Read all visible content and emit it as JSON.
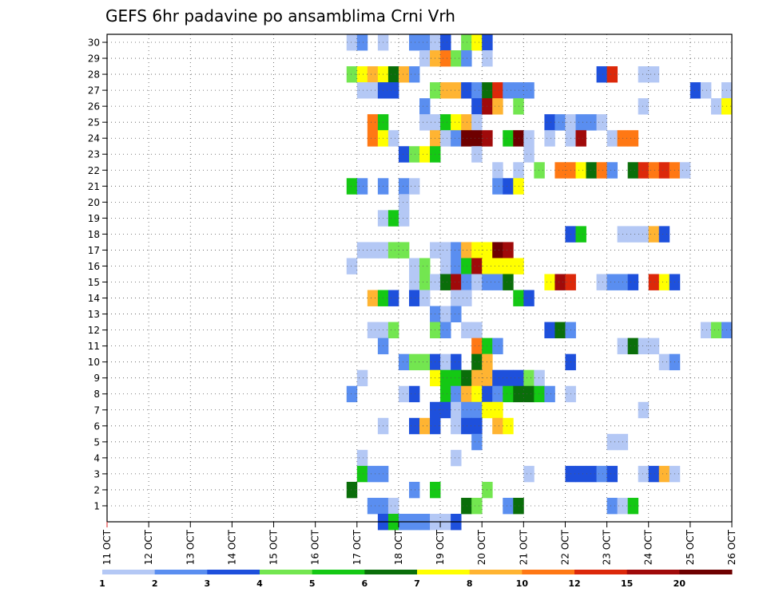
{
  "chart_data": {
    "type": "heatmap",
    "title": "GEFS 6hr padavine po ansamblima Crni Vrh",
    "xlabel": "",
    "ylabel": "",
    "x_tick_labels": [
      "11 OCT",
      "12 OCT",
      "13 OCT",
      "14 OCT",
      "15 OCT",
      "16 OCT",
      "17 OCT",
      "18 OCT",
      "19 OCT",
      "20 OCT",
      "21 OCT",
      "22 OCT",
      "23 OCT",
      "24 OCT",
      "25 OCT",
      "26 OCT"
    ],
    "y_tick_labels": [
      "1",
      "2",
      "3",
      "4",
      "5",
      "6",
      "7",
      "8",
      "9",
      "10",
      "11",
      "12",
      "13",
      "14",
      "15",
      "16",
      "17",
      "18",
      "19",
      "20",
      "21",
      "22",
      "23",
      "24",
      "25",
      "26",
      "27",
      "28",
      "29",
      "30"
    ],
    "x_range_days": [
      0,
      15
    ],
    "y_range": [
      0,
      30
    ],
    "steps_per_day": 4,
    "grid": "dotted",
    "legend_placement": "bottom",
    "color_levels": [
      1,
      2,
      3,
      4,
      5,
      6,
      7,
      8,
      10,
      12,
      15,
      20
    ],
    "level_labels": [
      "1",
      "2",
      "3",
      "4",
      "5",
      "6",
      "7",
      "8",
      "10",
      "12",
      "15",
      "20"
    ],
    "colors": [
      "#b4c8f5",
      "#5a8ef0",
      "#1e50dc",
      "#73e650",
      "#14c814",
      "#0a6e0a",
      "#ffff00",
      "#ffb432",
      "#ff7814",
      "#dc280a",
      "#a00a0a",
      "#6e0000"
    ],
    "cells": [
      [
        30,
        23,
        0
      ],
      [
        30,
        24,
        1
      ],
      [
        30,
        26,
        0
      ],
      [
        30,
        29,
        1
      ],
      [
        30,
        30,
        1
      ],
      [
        30,
        31,
        0
      ],
      [
        30,
        32,
        2
      ],
      [
        30,
        34,
        3
      ],
      [
        30,
        35,
        6
      ],
      [
        30,
        36,
        2
      ],
      [
        29,
        30,
        0
      ],
      [
        29,
        31,
        7
      ],
      [
        29,
        32,
        8
      ],
      [
        29,
        33,
        3
      ],
      [
        29,
        34,
        1
      ],
      [
        29,
        36,
        0
      ],
      [
        28,
        23,
        3
      ],
      [
        28,
        24,
        6
      ],
      [
        28,
        25,
        7
      ],
      [
        28,
        26,
        6
      ],
      [
        28,
        27,
        5
      ],
      [
        28,
        28,
        7
      ],
      [
        28,
        29,
        1
      ],
      [
        28,
        47,
        2
      ],
      [
        28,
        48,
        9
      ],
      [
        28,
        51,
        0
      ],
      [
        28,
        52,
        0
      ],
      [
        27,
        24,
        0
      ],
      [
        27,
        25,
        0
      ],
      [
        27,
        26,
        2
      ],
      [
        27,
        27,
        2
      ],
      [
        27,
        31,
        3
      ],
      [
        27,
        32,
        7
      ],
      [
        27,
        33,
        7
      ],
      [
        27,
        34,
        2
      ],
      [
        27,
        35,
        1
      ],
      [
        27,
        36,
        5
      ],
      [
        27,
        37,
        9
      ],
      [
        27,
        38,
        1
      ],
      [
        27,
        39,
        1
      ],
      [
        27,
        40,
        1
      ],
      [
        27,
        56,
        2
      ],
      [
        27,
        57,
        0
      ],
      [
        27,
        59,
        0
      ],
      [
        26,
        30,
        1
      ],
      [
        26,
        35,
        2
      ],
      [
        26,
        36,
        10
      ],
      [
        26,
        37,
        7
      ],
      [
        26,
        39,
        3
      ],
      [
        26,
        51,
        0
      ],
      [
        26,
        58,
        0
      ],
      [
        26,
        59,
        6
      ],
      [
        25,
        25,
        8
      ],
      [
        25,
        26,
        4
      ],
      [
        25,
        30,
        0
      ],
      [
        25,
        31,
        0
      ],
      [
        25,
        32,
        4
      ],
      [
        25,
        33,
        6
      ],
      [
        25,
        34,
        7
      ],
      [
        25,
        35,
        0
      ],
      [
        25,
        42,
        2
      ],
      [
        25,
        43,
        1
      ],
      [
        25,
        44,
        0
      ],
      [
        25,
        45,
        1
      ],
      [
        25,
        46,
        1
      ],
      [
        25,
        47,
        0
      ],
      [
        24,
        25,
        8
      ],
      [
        24,
        26,
        6
      ],
      [
        24,
        27,
        0
      ],
      [
        24,
        31,
        7
      ],
      [
        24,
        32,
        0
      ],
      [
        24,
        33,
        1
      ],
      [
        24,
        34,
        11
      ],
      [
        24,
        35,
        11
      ],
      [
        24,
        36,
        10
      ],
      [
        24,
        38,
        4
      ],
      [
        24,
        39,
        11
      ],
      [
        24,
        40,
        0
      ],
      [
        24,
        42,
        0
      ],
      [
        24,
        44,
        0
      ],
      [
        24,
        45,
        10
      ],
      [
        24,
        48,
        0
      ],
      [
        24,
        49,
        8
      ],
      [
        24,
        50,
        8
      ],
      [
        23,
        28,
        2
      ],
      [
        23,
        29,
        3
      ],
      [
        23,
        30,
        6
      ],
      [
        23,
        31,
        4
      ],
      [
        23,
        35,
        0
      ],
      [
        23,
        40,
        0
      ],
      [
        22,
        37,
        0
      ],
      [
        22,
        39,
        0
      ],
      [
        22,
        41,
        3
      ],
      [
        22,
        43,
        8
      ],
      [
        22,
        44,
        8
      ],
      [
        22,
        45,
        6
      ],
      [
        22,
        46,
        5
      ],
      [
        22,
        47,
        8
      ],
      [
        22,
        48,
        1
      ],
      [
        22,
        50,
        5
      ],
      [
        22,
        51,
        9
      ],
      [
        22,
        52,
        8
      ],
      [
        22,
        53,
        9
      ],
      [
        22,
        54,
        8
      ],
      [
        22,
        55,
        0
      ],
      [
        21,
        23,
        4
      ],
      [
        21,
        24,
        1
      ],
      [
        21,
        26,
        1
      ],
      [
        21,
        28,
        1
      ],
      [
        21,
        29,
        0
      ],
      [
        21,
        37,
        1
      ],
      [
        21,
        38,
        2
      ],
      [
        21,
        39,
        6
      ],
      [
        20,
        28,
        0
      ],
      [
        19,
        26,
        0
      ],
      [
        19,
        27,
        4
      ],
      [
        19,
        28,
        0
      ],
      [
        18,
        44,
        2
      ],
      [
        18,
        45,
        4
      ],
      [
        18,
        49,
        0
      ],
      [
        18,
        50,
        0
      ],
      [
        18,
        51,
        0
      ],
      [
        18,
        52,
        7
      ],
      [
        18,
        53,
        2
      ],
      [
        17,
        24,
        0
      ],
      [
        17,
        25,
        0
      ],
      [
        17,
        26,
        0
      ],
      [
        17,
        27,
        3
      ],
      [
        17,
        28,
        3
      ],
      [
        17,
        31,
        0
      ],
      [
        17,
        32,
        0
      ],
      [
        17,
        33,
        1
      ],
      [
        17,
        34,
        7
      ],
      [
        17,
        35,
        6
      ],
      [
        17,
        36,
        6
      ],
      [
        17,
        37,
        11
      ],
      [
        17,
        38,
        10
      ],
      [
        16,
        23,
        0
      ],
      [
        16,
        29,
        0
      ],
      [
        16,
        30,
        3
      ],
      [
        16,
        32,
        0
      ],
      [
        16,
        33,
        1
      ],
      [
        16,
        34,
        4
      ],
      [
        16,
        35,
        10
      ],
      [
        16,
        36,
        6
      ],
      [
        16,
        37,
        6
      ],
      [
        16,
        38,
        6
      ],
      [
        16,
        39,
        6
      ],
      [
        15,
        29,
        0
      ],
      [
        15,
        30,
        3
      ],
      [
        15,
        31,
        0
      ],
      [
        15,
        32,
        5
      ],
      [
        15,
        33,
        10
      ],
      [
        15,
        34,
        1
      ],
      [
        15,
        35,
        0
      ],
      [
        15,
        36,
        1
      ],
      [
        15,
        37,
        1
      ],
      [
        15,
        38,
        5
      ],
      [
        15,
        42,
        6
      ],
      [
        15,
        43,
        10
      ],
      [
        15,
        44,
        9
      ],
      [
        15,
        47,
        0
      ],
      [
        15,
        48,
        1
      ],
      [
        15,
        49,
        1
      ],
      [
        15,
        50,
        2
      ],
      [
        15,
        52,
        9
      ],
      [
        15,
        53,
        6
      ],
      [
        15,
        54,
        2
      ],
      [
        14,
        25,
        7
      ],
      [
        14,
        26,
        4
      ],
      [
        14,
        27,
        2
      ],
      [
        14,
        29,
        2
      ],
      [
        14,
        30,
        0
      ],
      [
        14,
        33,
        0
      ],
      [
        14,
        34,
        0
      ],
      [
        14,
        39,
        4
      ],
      [
        14,
        40,
        2
      ],
      [
        13,
        31,
        1
      ],
      [
        13,
        32,
        0
      ],
      [
        13,
        33,
        1
      ],
      [
        12,
        25,
        0
      ],
      [
        12,
        26,
        0
      ],
      [
        12,
        27,
        3
      ],
      [
        12,
        31,
        3
      ],
      [
        12,
        32,
        1
      ],
      [
        12,
        34,
        0
      ],
      [
        12,
        35,
        0
      ],
      [
        12,
        42,
        2
      ],
      [
        12,
        43,
        5
      ],
      [
        12,
        44,
        1
      ],
      [
        12,
        57,
        0
      ],
      [
        12,
        58,
        3
      ],
      [
        12,
        59,
        1
      ],
      [
        11,
        26,
        1
      ],
      [
        11,
        35,
        8
      ],
      [
        11,
        36,
        4
      ],
      [
        11,
        37,
        1
      ],
      [
        11,
        49,
        0
      ],
      [
        11,
        50,
        5
      ],
      [
        11,
        51,
        0
      ],
      [
        11,
        52,
        0
      ],
      [
        10,
        28,
        1
      ],
      [
        10,
        29,
        3
      ],
      [
        10,
        30,
        3
      ],
      [
        10,
        31,
        2
      ],
      [
        10,
        32,
        0
      ],
      [
        10,
        33,
        2
      ],
      [
        10,
        35,
        5
      ],
      [
        10,
        36,
        7
      ],
      [
        10,
        44,
        2
      ],
      [
        10,
        53,
        0
      ],
      [
        10,
        54,
        1
      ],
      [
        9,
        24,
        0
      ],
      [
        9,
        31,
        6
      ],
      [
        9,
        32,
        4
      ],
      [
        9,
        33,
        4
      ],
      [
        9,
        34,
        5
      ],
      [
        9,
        35,
        7
      ],
      [
        9,
        36,
        7
      ],
      [
        9,
        37,
        2
      ],
      [
        9,
        38,
        2
      ],
      [
        9,
        39,
        2
      ],
      [
        9,
        40,
        3
      ],
      [
        9,
        41,
        0
      ],
      [
        8,
        23,
        1
      ],
      [
        8,
        28,
        0
      ],
      [
        8,
        29,
        2
      ],
      [
        8,
        32,
        4
      ],
      [
        8,
        33,
        1
      ],
      [
        8,
        34,
        7
      ],
      [
        8,
        35,
        6
      ],
      [
        8,
        36,
        2
      ],
      [
        8,
        37,
        1
      ],
      [
        8,
        38,
        4
      ],
      [
        8,
        39,
        5
      ],
      [
        8,
        40,
        5
      ],
      [
        8,
        41,
        4
      ],
      [
        8,
        42,
        1
      ],
      [
        8,
        44,
        0
      ],
      [
        7,
        31,
        2
      ],
      [
        7,
        32,
        2
      ],
      [
        7,
        33,
        0
      ],
      [
        7,
        34,
        1
      ],
      [
        7,
        35,
        1
      ],
      [
        7,
        36,
        6
      ],
      [
        7,
        37,
        6
      ],
      [
        7,
        51,
        0
      ],
      [
        6,
        26,
        0
      ],
      [
        6,
        29,
        2
      ],
      [
        6,
        30,
        7
      ],
      [
        6,
        31,
        2
      ],
      [
        6,
        33,
        0
      ],
      [
        6,
        34,
        2
      ],
      [
        6,
        35,
        2
      ],
      [
        6,
        37,
        7
      ],
      [
        6,
        38,
        6
      ],
      [
        5,
        35,
        1
      ],
      [
        5,
        48,
        0
      ],
      [
        5,
        49,
        0
      ],
      [
        4,
        24,
        0
      ],
      [
        4,
        33,
        0
      ],
      [
        3,
        24,
        4
      ],
      [
        3,
        25,
        1
      ],
      [
        3,
        26,
        1
      ],
      [
        3,
        40,
        0
      ],
      [
        3,
        44,
        2
      ],
      [
        3,
        45,
        2
      ],
      [
        3,
        46,
        2
      ],
      [
        3,
        47,
        1
      ],
      [
        3,
        48,
        2
      ],
      [
        3,
        51,
        0
      ],
      [
        3,
        52,
        2
      ],
      [
        3,
        53,
        7
      ],
      [
        3,
        54,
        0
      ],
      [
        2,
        23,
        5
      ],
      [
        2,
        29,
        1
      ],
      [
        2,
        31,
        4
      ],
      [
        2,
        36,
        3
      ],
      [
        1,
        25,
        1
      ],
      [
        1,
        26,
        1
      ],
      [
        1,
        27,
        0
      ],
      [
        1,
        34,
        5
      ],
      [
        1,
        35,
        3
      ],
      [
        1,
        38,
        1
      ],
      [
        1,
        39,
        5
      ],
      [
        1,
        48,
        1
      ],
      [
        1,
        49,
        0
      ],
      [
        1,
        50,
        4
      ],
      [
        0,
        26,
        2
      ],
      [
        0,
        27,
        4
      ],
      [
        0,
        28,
        1
      ],
      [
        0,
        29,
        1
      ],
      [
        0,
        30,
        1
      ],
      [
        0,
        31,
        0
      ],
      [
        0,
        32,
        0
      ],
      [
        0,
        33,
        2
      ]
    ]
  }
}
